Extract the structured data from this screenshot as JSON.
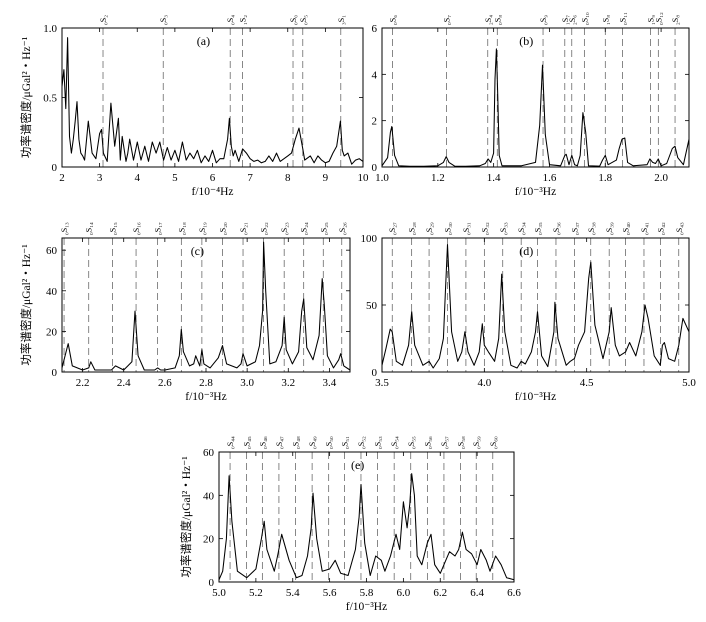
{
  "chart_data": [
    {
      "type": "line",
      "panel_label": "(a)",
      "xlabel": "f/10⁻⁴Hz",
      "ylabel": "功率谱密度/μGal²・Hz⁻¹",
      "xlim": [
        2,
        10
      ],
      "ylim": [
        0,
        1.0
      ],
      "xticks": [
        2,
        3,
        4,
        5,
        6,
        7,
        8,
        9,
        10
      ],
      "yticks": [
        0,
        0.5,
        1.0
      ],
      "ytick_labels": [
        "0",
        "0.5",
        "1.0"
      ],
      "modes": [
        {
          "label": "₀S₂",
          "f": 3.09
        },
        {
          "label": "₀S₃",
          "f": 4.69
        },
        {
          "label": "₀S₄",
          "f": 6.47
        },
        {
          "label": "₁S₂",
          "f": 6.8
        },
        {
          "label": "₀S₀",
          "f": 8.14
        },
        {
          "label": "₀S₅",
          "f": 8.4
        },
        {
          "label": "₃S₁",
          "f": 9.41
        }
      ],
      "series": [
        {
          "x": [
            2.0,
            2.05,
            2.1,
            2.15,
            2.2,
            2.25,
            2.3,
            2.35,
            2.4,
            2.45,
            2.5,
            2.55,
            2.6,
            2.7,
            2.8,
            2.9,
            3.0,
            3.05,
            3.1,
            3.2,
            3.3,
            3.4,
            3.5,
            3.55,
            3.6,
            3.7,
            3.75,
            3.8,
            3.9,
            4.0,
            4.1,
            4.2,
            4.3,
            4.4,
            4.5,
            4.6,
            4.7,
            4.8,
            4.9,
            5.0,
            5.1,
            5.2,
            5.3,
            5.4,
            5.5,
            5.6,
            5.7,
            5.8,
            5.9,
            6.0,
            6.1,
            6.2,
            6.3,
            6.4,
            6.45,
            6.5,
            6.55,
            6.6,
            6.7,
            6.8,
            6.9,
            7.0,
            7.1,
            7.2,
            7.3,
            7.4,
            7.5,
            7.6,
            7.7,
            7.8,
            7.9,
            8.0,
            8.1,
            8.2,
            8.3,
            8.4,
            8.45,
            8.5,
            8.6,
            8.7,
            8.8,
            8.9,
            9.0,
            9.1,
            9.2,
            9.3,
            9.4,
            9.45,
            9.5,
            9.6,
            9.7,
            9.8,
            9.9,
            10.0
          ],
          "y": [
            0.58,
            0.7,
            0.42,
            0.93,
            0.22,
            0.1,
            0.2,
            0.33,
            0.47,
            0.2,
            0.1,
            0.08,
            0.05,
            0.33,
            0.1,
            0.06,
            0.24,
            0.27,
            0.1,
            0.04,
            0.46,
            0.15,
            0.35,
            0.05,
            0.22,
            0.04,
            0.1,
            0.2,
            0.05,
            0.18,
            0.05,
            0.15,
            0.04,
            0.18,
            0.1,
            0.18,
            0.05,
            0.14,
            0.05,
            0.12,
            0.04,
            0.18,
            0.05,
            0.1,
            0.06,
            0.12,
            0.03,
            0.08,
            0.04,
            0.12,
            0.03,
            0.06,
            0.06,
            0.2,
            0.35,
            0.15,
            0.08,
            0.12,
            0.04,
            0.13,
            0.1,
            0.06,
            0.04,
            0.05,
            0.03,
            0.04,
            0.08,
            0.04,
            0.1,
            0.04,
            0.06,
            0.08,
            0.1,
            0.2,
            0.28,
            0.13,
            0.05,
            0.06,
            0.08,
            0.03,
            0.08,
            0.05,
            0.03,
            0.04,
            0.1,
            0.15,
            0.33,
            0.12,
            0.08,
            0.1,
            0.02,
            0.05,
            0.06,
            0.04
          ]
        }
      ]
    },
    {
      "type": "line",
      "panel_label": "(b)",
      "xlabel": "f/10⁻³Hz",
      "xlim": [
        1.0,
        2.1
      ],
      "ylim": [
        0,
        6
      ],
      "xticks": [
        1.0,
        1.2,
        1.4,
        1.6,
        1.8,
        2.0
      ],
      "yticks": [
        0,
        2,
        4,
        6
      ],
      "modes": [
        {
          "label": "₀S₆",
          "f": 1.038
        },
        {
          "label": "₀S₇",
          "f": 1.231
        },
        {
          "label": "₂S₄",
          "f": 1.379
        },
        {
          "label": "₀S₈",
          "f": 1.413
        },
        {
          "label": "₀S₉",
          "f": 1.577
        },
        {
          "label": "₁S₇",
          "f": 1.655
        },
        {
          "label": "₂S₆",
          "f": 1.68
        },
        {
          "label": "₀S₁₀",
          "f": 1.725
        },
        {
          "label": "₁S₈",
          "f": 1.8
        },
        {
          "label": "₀S₁₁",
          "f": 1.862
        },
        {
          "label": "₁S₉",
          "f": 1.962
        },
        {
          "label": "₀S₁₂",
          "f": 1.99
        },
        {
          "label": "₂S₈",
          "f": 2.05
        }
      ],
      "series": [
        {
          "x": [
            1.0,
            1.02,
            1.03,
            1.035,
            1.045,
            1.06,
            1.1,
            1.15,
            1.2,
            1.22,
            1.23,
            1.24,
            1.26,
            1.3,
            1.35,
            1.37,
            1.38,
            1.39,
            1.4,
            1.405,
            1.41,
            1.415,
            1.42,
            1.43,
            1.5,
            1.55,
            1.565,
            1.575,
            1.585,
            1.6,
            1.64,
            1.655,
            1.66,
            1.67,
            1.68,
            1.69,
            1.7,
            1.71,
            1.72,
            1.73,
            1.74,
            1.78,
            1.79,
            1.8,
            1.81,
            1.84,
            1.85,
            1.86,
            1.87,
            1.88,
            1.9,
            1.95,
            1.96,
            1.97,
            1.98,
            1.99,
            2.0,
            2.02,
            2.04,
            2.05,
            2.06,
            2.08,
            2.1
          ],
          "y": [
            0.05,
            0.4,
            1.5,
            1.75,
            0.5,
            0.05,
            0.03,
            0.03,
            0.05,
            0.2,
            0.45,
            0.2,
            0.04,
            0.03,
            0.05,
            0.15,
            0.35,
            0.2,
            0.6,
            3.8,
            5.1,
            3.0,
            0.5,
            0.05,
            0.05,
            0.2,
            1.8,
            4.4,
            1.4,
            0.1,
            0.05,
            0.5,
            0.55,
            0.1,
            0.5,
            0.1,
            0.05,
            0.5,
            2.35,
            1.5,
            0.05,
            0.04,
            0.3,
            0.5,
            0.1,
            0.3,
            0.8,
            1.2,
            1.25,
            0.2,
            0.05,
            0.1,
            0.35,
            0.2,
            0.15,
            0.35,
            0.05,
            0.15,
            0.8,
            0.9,
            0.4,
            0.1,
            1.2
          ]
        }
      ]
    },
    {
      "type": "line",
      "panel_label": "(c)",
      "xlabel": "f/10⁻³Hz",
      "ylabel": "功率谱密度/μGal²・Hz⁻¹",
      "xlim": [
        2.1,
        3.5
      ],
      "ylim": [
        0,
        66
      ],
      "xticks": [
        2.2,
        2.4,
        2.6,
        2.8,
        3.0,
        3.2,
        3.4
      ],
      "yticks": [
        0,
        20,
        40,
        60
      ],
      "modes": [
        {
          "label": "₀S₁₃",
          "f": 2.11
        },
        {
          "label": "₀S₁₄",
          "f": 2.23
        },
        {
          "label": "₀S₁₅",
          "f": 2.345
        },
        {
          "label": "₀S₁₆",
          "f": 2.46
        },
        {
          "label": "₀S₁₇",
          "f": 2.565
        },
        {
          "label": "₀S₁₈",
          "f": 2.68
        },
        {
          "label": "₀S₁₉",
          "f": 2.78
        },
        {
          "label": "₀S₂₀",
          "f": 2.88
        },
        {
          "label": "₀S₂₁",
          "f": 2.98
        },
        {
          "label": "₀S₂₂",
          "f": 3.08
        },
        {
          "label": "₀S₂₃",
          "f": 3.18
        },
        {
          "label": "₀S₂₄",
          "f": 3.275
        },
        {
          "label": "₀S₂₅",
          "f": 3.37
        },
        {
          "label": "₀S₂₆",
          "f": 3.46
        }
      ],
      "series": [
        {
          "x": [
            2.1,
            2.12,
            2.13,
            2.15,
            2.2,
            2.23,
            2.24,
            2.26,
            2.3,
            2.34,
            2.36,
            2.4,
            2.44,
            2.455,
            2.47,
            2.5,
            2.55,
            2.565,
            2.58,
            2.6,
            2.65,
            2.67,
            2.68,
            2.69,
            2.72,
            2.74,
            2.75,
            2.77,
            2.78,
            2.79,
            2.82,
            2.86,
            2.88,
            2.9,
            2.95,
            2.97,
            2.98,
            3.0,
            3.04,
            3.06,
            3.075,
            3.08,
            3.09,
            3.11,
            3.14,
            3.17,
            3.18,
            3.19,
            3.22,
            3.25,
            3.265,
            3.275,
            3.29,
            3.32,
            3.35,
            3.365,
            3.375,
            3.39,
            3.42,
            3.445,
            3.455,
            3.47,
            3.5
          ],
          "y": [
            2,
            10,
            14,
            3,
            1,
            2,
            5,
            1,
            1,
            1,
            3,
            1,
            5,
            30,
            8,
            1,
            1,
            2,
            1,
            1,
            2,
            8,
            21,
            10,
            3,
            4,
            8,
            3,
            11,
            4,
            2,
            7,
            13,
            4,
            2,
            4,
            9,
            3,
            5,
            13,
            30,
            64,
            40,
            4,
            5,
            13,
            27,
            11,
            4,
            10,
            30,
            36,
            12,
            6,
            18,
            46,
            33,
            8,
            2,
            6,
            9,
            3,
            1
          ]
        }
      ]
    },
    {
      "type": "line",
      "panel_label": "(d)",
      "xlabel": "f/10⁻³Hz",
      "xlim": [
        3.5,
        5.0
      ],
      "ylim": [
        0,
        100
      ],
      "xticks": [
        3.5,
        4.0,
        4.5,
        5.0
      ],
      "yticks": [
        0,
        50,
        100
      ],
      "modes": [
        {
          "label": "₀S₂₇",
          "f": 3.55
        },
        {
          "label": "₀S₂₈",
          "f": 3.645
        },
        {
          "label": "₀S₂₉",
          "f": 3.73
        },
        {
          "label": "₀S₃₀",
          "f": 3.82
        },
        {
          "label": "₀S₃₁",
          "f": 3.91
        },
        {
          "label": "₀S₃₂",
          "f": 4.0
        },
        {
          "label": "₀S₃₃",
          "f": 4.09
        },
        {
          "label": "₀S₃₄",
          "f": 4.18
        },
        {
          "label": "₀S₃₅",
          "f": 4.26
        },
        {
          "label": "₀S₃₆",
          "f": 4.35
        },
        {
          "label": "₀S₃₇",
          "f": 4.44
        },
        {
          "label": "₀S₃₈",
          "f": 4.52
        },
        {
          "label": "₀S₃₉",
          "f": 4.61
        },
        {
          "label": "₀S₄₀",
          "f": 4.69
        },
        {
          "label": "₀S₄₁",
          "f": 4.78
        },
        {
          "label": "₀S₄₂",
          "f": 4.86
        },
        {
          "label": "₀S₄₃",
          "f": 4.95
        }
      ],
      "series": [
        {
          "x": [
            3.5,
            3.52,
            3.54,
            3.55,
            3.57,
            3.6,
            3.63,
            3.645,
            3.66,
            3.7,
            3.73,
            3.75,
            3.78,
            3.8,
            3.81,
            3.82,
            3.84,
            3.87,
            3.89,
            3.905,
            3.92,
            3.95,
            3.975,
            3.99,
            4.0,
            4.02,
            4.05,
            4.07,
            4.085,
            4.1,
            4.13,
            4.16,
            4.18,
            4.2,
            4.23,
            4.25,
            4.26,
            4.28,
            4.31,
            4.34,
            4.345,
            4.36,
            4.4,
            4.42,
            4.44,
            4.46,
            4.49,
            4.51,
            4.52,
            4.54,
            4.58,
            4.61,
            4.62,
            4.64,
            4.66,
            4.69,
            4.71,
            4.74,
            4.77,
            4.785,
            4.8,
            4.83,
            4.86,
            4.87,
            4.88,
            4.9,
            4.93,
            4.95,
            4.97,
            5.0
          ],
          "y": [
            5,
            18,
            32,
            30,
            8,
            5,
            20,
            45,
            20,
            5,
            8,
            3,
            10,
            25,
            60,
            95,
            30,
            8,
            15,
            30,
            15,
            5,
            15,
            36,
            20,
            15,
            8,
            25,
            73,
            30,
            5,
            3,
            8,
            6,
            15,
            30,
            45,
            12,
            4,
            30,
            52,
            25,
            5,
            8,
            10,
            20,
            30,
            70,
            82,
            35,
            10,
            30,
            48,
            20,
            12,
            15,
            22,
            12,
            30,
            50,
            40,
            12,
            5,
            20,
            22,
            10,
            8,
            20,
            40,
            30
          ]
        }
      ]
    },
    {
      "type": "line",
      "panel_label": "(e)",
      "xlabel": "f/10⁻³Hz",
      "ylabel": "功率谱密度/μGal²・Hz⁻¹",
      "xlim": [
        5.0,
        6.6
      ],
      "ylim": [
        0,
        60
      ],
      "xticks": [
        5.0,
        5.2,
        5.4,
        5.6,
        5.8,
        6.0,
        6.2,
        6.4,
        6.6
      ],
      "yticks": [
        0,
        20,
        40,
        60
      ],
      "modes": [
        {
          "label": "₀S₄₄",
          "f": 5.06
        },
        {
          "label": "₀S₄₅",
          "f": 5.15
        },
        {
          "label": "₀S₄₆",
          "f": 5.235
        },
        {
          "label": "₀S₄₇",
          "f": 5.325
        },
        {
          "label": "₀S₄₈",
          "f": 5.415
        },
        {
          "label": "₀S₄₉",
          "f": 5.505
        },
        {
          "label": "₀S₅₀",
          "f": 5.595
        },
        {
          "label": "₀S₅₁",
          "f": 5.68
        },
        {
          "label": "₀S₅₂",
          "f": 5.77
        },
        {
          "label": "₀S₅₃",
          "f": 5.86
        },
        {
          "label": "₀S₅₄",
          "f": 5.95
        },
        {
          "label": "₀S₅₅",
          "f": 6.04
        },
        {
          "label": "₀S₅₆",
          "f": 6.13
        },
        {
          "label": "₀S₅₇",
          "f": 6.22
        },
        {
          "label": "₀S₅₈",
          "f": 6.31
        },
        {
          "label": "₀S₅₉",
          "f": 6.395
        },
        {
          "label": "₀S₆₀",
          "f": 6.485
        }
      ],
      "series": [
        {
          "x": [
            5.0,
            5.02,
            5.04,
            5.055,
            5.07,
            5.1,
            5.15,
            5.2,
            5.23,
            5.245,
            5.26,
            5.3,
            5.32,
            5.34,
            5.38,
            5.42,
            5.45,
            5.48,
            5.5,
            5.51,
            5.53,
            5.56,
            5.6,
            5.63,
            5.66,
            5.7,
            5.74,
            5.76,
            5.77,
            5.79,
            5.82,
            5.85,
            5.88,
            5.9,
            5.93,
            5.96,
            5.98,
            6.0,
            6.02,
            6.035,
            6.045,
            6.06,
            6.075,
            6.1,
            6.13,
            6.15,
            6.17,
            6.2,
            6.23,
            6.25,
            6.28,
            6.3,
            6.32,
            6.34,
            6.37,
            6.4,
            6.42,
            6.45,
            6.47,
            6.5,
            6.53,
            6.56,
            6.6
          ],
          "y": [
            1,
            5,
            20,
            49,
            28,
            5,
            2,
            6,
            20,
            28,
            15,
            5,
            13,
            22,
            10,
            2,
            3,
            12,
            25,
            41,
            20,
            5,
            6,
            10,
            4,
            3,
            15,
            30,
            45,
            18,
            3,
            12,
            10,
            5,
            12,
            22,
            15,
            37,
            25,
            36,
            50,
            40,
            12,
            8,
            18,
            22,
            8,
            4,
            10,
            14,
            12,
            15,
            23,
            15,
            13,
            8,
            15,
            10,
            5,
            12,
            8,
            2,
            1
          ]
        }
      ]
    }
  ]
}
